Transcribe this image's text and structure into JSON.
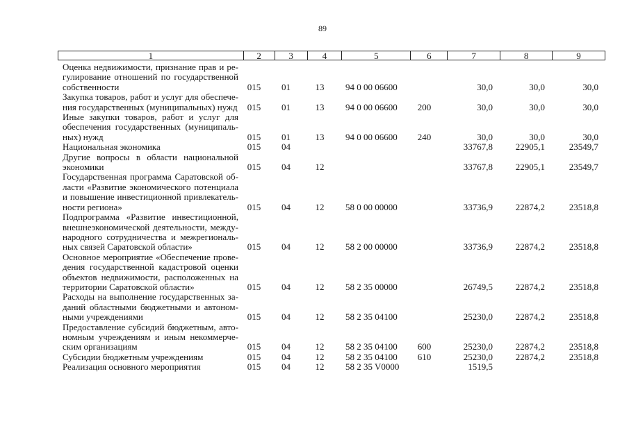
{
  "page_number": "89",
  "header": [
    "1",
    "2",
    "3",
    "4",
    "5",
    "6",
    "7",
    "8",
    "9"
  ],
  "rows": [
    {
      "desc": [
        "Оценка недвижимости, признание прав и ре-",
        "гулирование отношений по государственной",
        "собственности"
      ],
      "c2": "015",
      "c3": "01",
      "c4": "13",
      "c5": "94 0 00 06600",
      "c6": "",
      "c7": "30,0",
      "c8": "30,0",
      "c9": "30,0"
    },
    {
      "desc": [
        "Закупка товаров, работ и услуг для обеспече-",
        "ния государственных (муниципальных) нужд"
      ],
      "c2": "015",
      "c3": "01",
      "c4": "13",
      "c5": "94 0 00 06600",
      "c6": "200",
      "c7": "30,0",
      "c8": "30,0",
      "c9": "30,0"
    },
    {
      "desc": [
        "Иные закупки товаров, работ и услуг для",
        "обеспечения государственных (муниципаль-",
        "ных) нужд"
      ],
      "c2": "015",
      "c3": "01",
      "c4": "13",
      "c5": "94 0 00 06600",
      "c6": "240",
      "c7": "30,0",
      "c8": "30,0",
      "c9": "30,0"
    },
    {
      "desc": [
        "Национальная экономика"
      ],
      "c2": "015",
      "c3": "04",
      "c4": "",
      "c5": "",
      "c6": "",
      "c7": "33767,8",
      "c8": "22905,1",
      "c9": "23549,7"
    },
    {
      "desc": [
        "Другие вопросы в области национальной",
        "экономики"
      ],
      "c2": "015",
      "c3": "04",
      "c4": "12",
      "c5": "",
      "c6": "",
      "c7": "33767,8",
      "c8": "22905,1",
      "c9": "23549,7"
    },
    {
      "desc": [
        "Государственная программа Саратовской об-",
        "ласти «Развитие экономического потенциала",
        "и повышение инвестиционной привлекатель-",
        "ности региона»"
      ],
      "c2": "015",
      "c3": "04",
      "c4": "12",
      "c5": "58 0 00 00000",
      "c6": "",
      "c7": "33736,9",
      "c8": "22874,2",
      "c9": "23518,8"
    },
    {
      "desc": [
        "Подпрограмма «Развитие инвестиционной,",
        "внешнеэкономической деятельности, между-",
        "народного сотрудничества и межрегиональ-",
        "ных связей Саратовской области»"
      ],
      "c2": "015",
      "c3": "04",
      "c4": "12",
      "c5": "58 2 00 00000",
      "c6": "",
      "c7": "33736,9",
      "c8": "22874,2",
      "c9": "23518,8"
    },
    {
      "desc": [
        "Основное мероприятие «Обеспечение прове-",
        "дения государственной кадастровой оценки",
        "объектов недвижимости, расположенных на",
        "территории Саратовской области»"
      ],
      "c2": "015",
      "c3": "04",
      "c4": "12",
      "c5": "58 2 35 00000",
      "c6": "",
      "c7": "26749,5",
      "c8": "22874,2",
      "c9": "23518,8"
    },
    {
      "desc": [
        "Расходы на выполнение государственных за-",
        "даний областными бюджетными и автоном-",
        "ными учреждениями"
      ],
      "c2": "015",
      "c3": "04",
      "c4": "12",
      "c5": "58 2 35 04100",
      "c6": "",
      "c7": "25230,0",
      "c8": "22874,2",
      "c9": "23518,8"
    },
    {
      "desc": [
        "Предоставление субсидий бюджетным, авто-",
        "номным учреждениям и иным некоммерче-",
        "ским организациям"
      ],
      "c2": "015",
      "c3": "04",
      "c4": "12",
      "c5": "58 2 35 04100",
      "c6": "600",
      "c7": "25230,0",
      "c8": "22874,2",
      "c9": "23518,8"
    },
    {
      "desc": [
        "Субсидии бюджетным учреждениям"
      ],
      "c2": "015",
      "c3": "04",
      "c4": "12",
      "c5": "58 2 35 04100",
      "c6": "610",
      "c7": "25230,0",
      "c8": "22874,2",
      "c9": "23518,8"
    },
    {
      "desc": [
        "Реализация основного мероприятия"
      ],
      "c2": "015",
      "c3": "04",
      "c4": "12",
      "c5": "58 2 35 V0000",
      "c6": "",
      "c7": "1519,5",
      "c8": "",
      "c9": ""
    }
  ]
}
